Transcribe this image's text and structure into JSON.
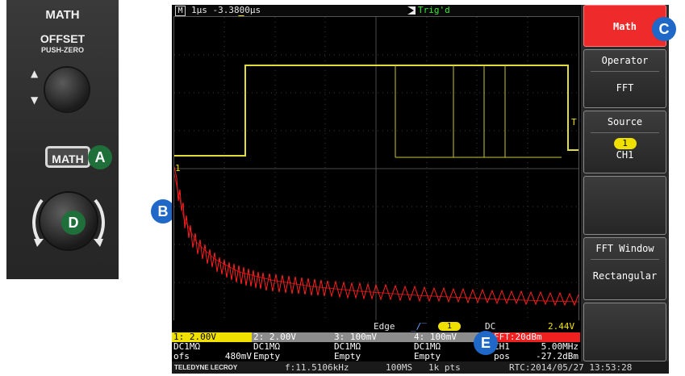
{
  "panel": {
    "title": "MATH",
    "offset_title": "OFFSET",
    "offset_sub": "PUSH-ZERO",
    "math_button": "MATH"
  },
  "badges": {
    "a": "A",
    "b": "B",
    "c": "C",
    "d": "D",
    "e": "E"
  },
  "screen": {
    "top": {
      "mode": "M",
      "timebase": "1μs -3.3800μs",
      "trigger_status": "Trig'd"
    },
    "trigger_info": {
      "type": "Edge",
      "channel": "1",
      "coupling": "DC",
      "level": "2.44V"
    },
    "channels": [
      {
        "label": "1: 2.00V",
        "coupling": "DC1MΩ",
        "line3_left": "ofs",
        "line3_right": "480mV",
        "color": "#ffee00"
      },
      {
        "label": "2: 2.00V",
        "coupling": "DC1MΩ",
        "line3_left": "Empty",
        "line3_right": "",
        "color": "#9a9a9a"
      },
      {
        "label": "3: 100mV",
        "coupling": "DC1MΩ",
        "line3_left": "Empty",
        "line3_right": "",
        "color": "#9a9a9a"
      },
      {
        "label": "4: 100mV",
        "coupling": "DC1MΩ",
        "line3_left": "Empty",
        "line3_right": "",
        "color": "#9a9a9a"
      }
    ],
    "fft": {
      "label": "FFT:20dBm",
      "line2_left": "CH1",
      "line2_right": "5.00MHz",
      "line3_left": "pos",
      "line3_right": "-27.2dBm",
      "color": "#ff2a2a"
    },
    "status": {
      "brand": "TELEDYNE LECROY",
      "frequency": "f:11.5106kHz",
      "sample_rate": "100MS",
      "points": "1k pts",
      "rtc": "RTC:2014/05/27 13:53:28"
    },
    "markers": {
      "ch1": "1",
      "trig_level": "T"
    }
  },
  "menu": {
    "math": "Math",
    "operator_title": "Operator",
    "operator_value": "FFT",
    "source_title": "Source",
    "source_badge": "1",
    "source_value": "CH1",
    "fft_window_title": "FFT Window",
    "fft_window_value": "Rectangular"
  },
  "colors": {
    "ch1": "#e0dc3c",
    "math": "#ff1f1f",
    "menu_active": "#ee2a2a",
    "accent_blue": "#1f68c8",
    "badge_green": "#1e6f3a"
  }
}
